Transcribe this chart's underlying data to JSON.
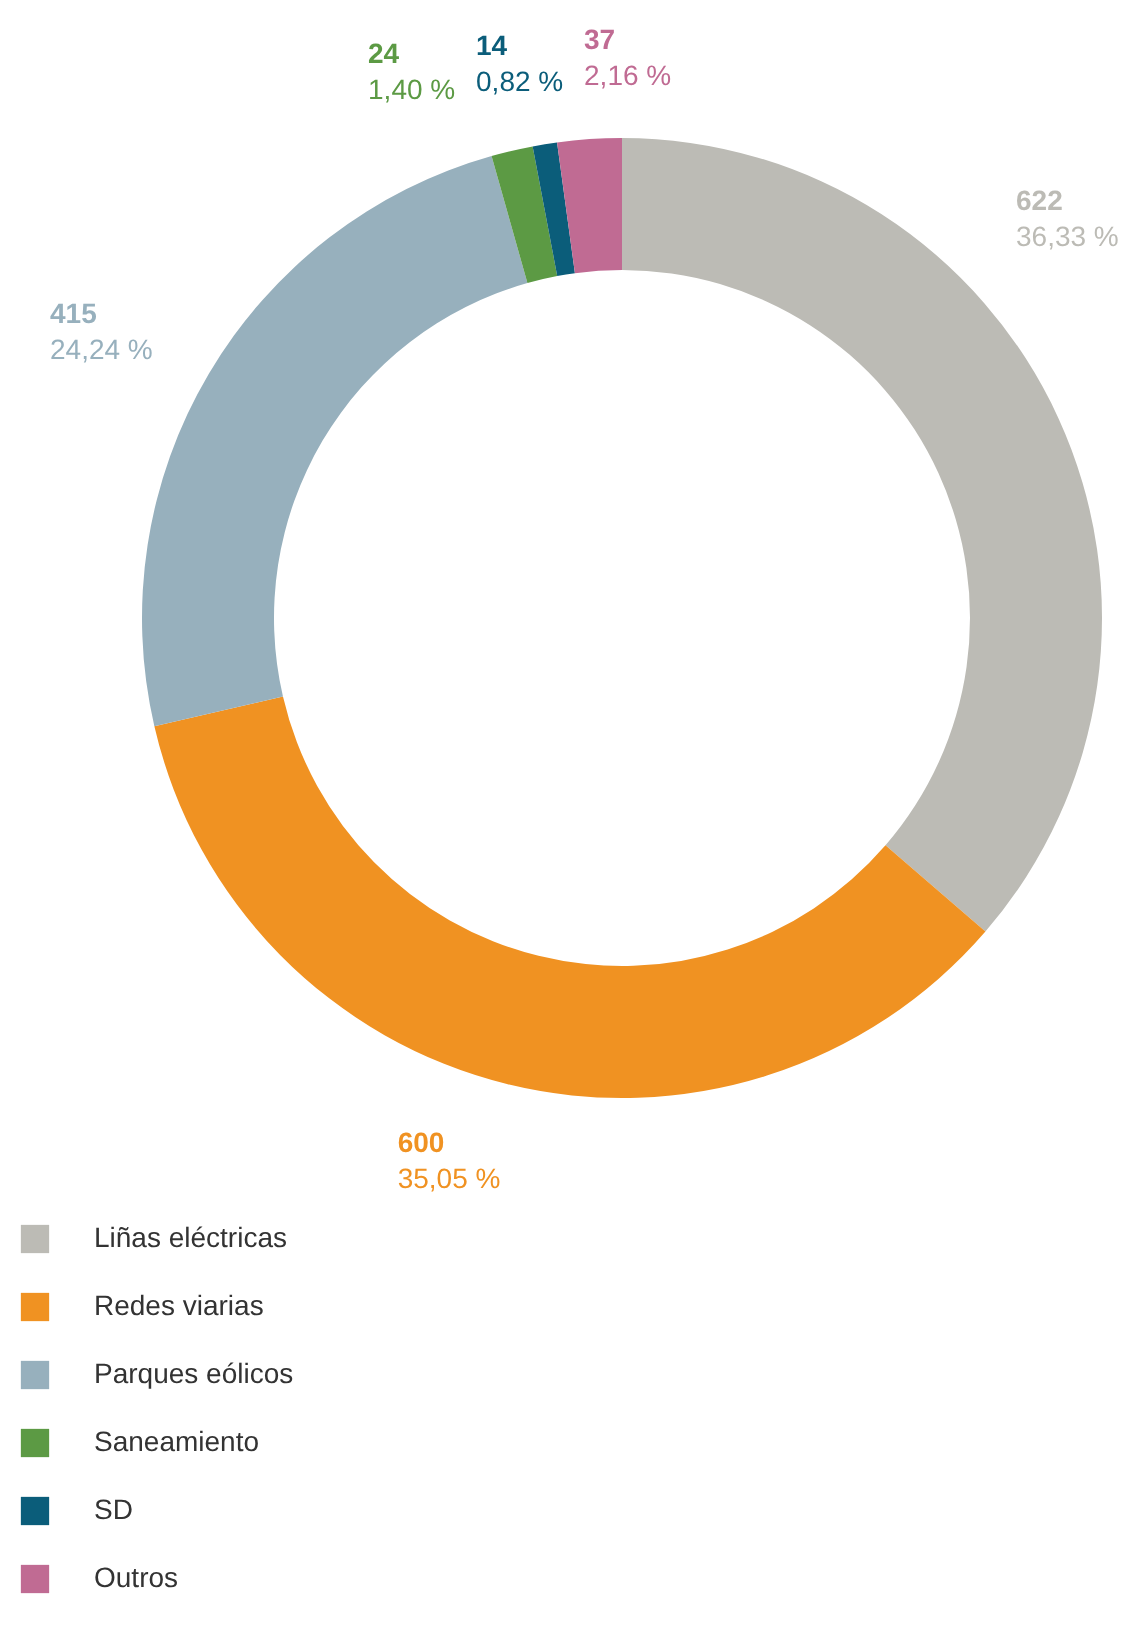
{
  "chart_data": {
    "type": "donut",
    "categories": [
      "Liñas eléctricas",
      "Redes viarias",
      "Parques eólicos",
      "Saneamiento",
      "SD",
      "Outros"
    ],
    "values": [
      36.33,
      35.05,
      24.24,
      1.4,
      0.82,
      2.16
    ],
    "colors": [
      "#bcbbb5",
      "#f09222",
      "#97b0bd",
      "#5c9a44",
      "#0b5d7a",
      "#c06b93"
    ],
    "value_labels": [
      "622\n36,33 %",
      "600\n35,05 %",
      "415\n24,24 %",
      "24\n1,40 %",
      "14\n0,82 %",
      "37\n2,16 %"
    ],
    "legend": "bottom left"
  }
}
